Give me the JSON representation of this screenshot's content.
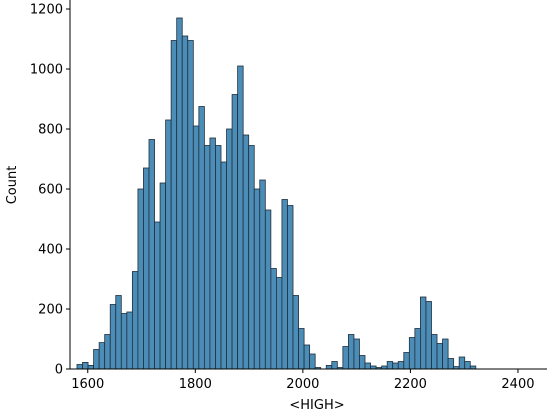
{
  "chart_data": {
    "type": "bar",
    "title": "",
    "xlabel": "<HIGH>",
    "ylabel": "Count",
    "xlim": [
      1567,
      2454
    ],
    "ylim": [
      0,
      1230
    ],
    "x_ticks": [
      1600,
      1800,
      2000,
      2200,
      2400
    ],
    "y_ticks": [
      0,
      200,
      400,
      600,
      800,
      1000,
      1200
    ],
    "bin_width": 10.3,
    "bin_start": 1580,
    "grid": false,
    "legend": "none",
    "colors": {
      "bar_fill": "#4c8db8",
      "bar_edge": "#1f2f3c",
      "axis": "#000000"
    },
    "counts": [
      15,
      22,
      12,
      65,
      88,
      115,
      215,
      245,
      185,
      190,
      325,
      600,
      670,
      765,
      490,
      620,
      830,
      1095,
      1170,
      1110,
      1095,
      810,
      875,
      745,
      770,
      745,
      690,
      800,
      915,
      1010,
      780,
      745,
      600,
      630,
      530,
      335,
      305,
      565,
      545,
      245,
      135,
      80,
      50,
      5,
      0,
      12,
      25,
      5,
      75,
      115,
      100,
      45,
      20,
      10,
      5,
      10,
      25,
      20,
      25,
      55,
      105,
      135,
      240,
      225,
      115,
      85,
      100,
      35,
      8,
      40,
      25,
      10
    ]
  }
}
